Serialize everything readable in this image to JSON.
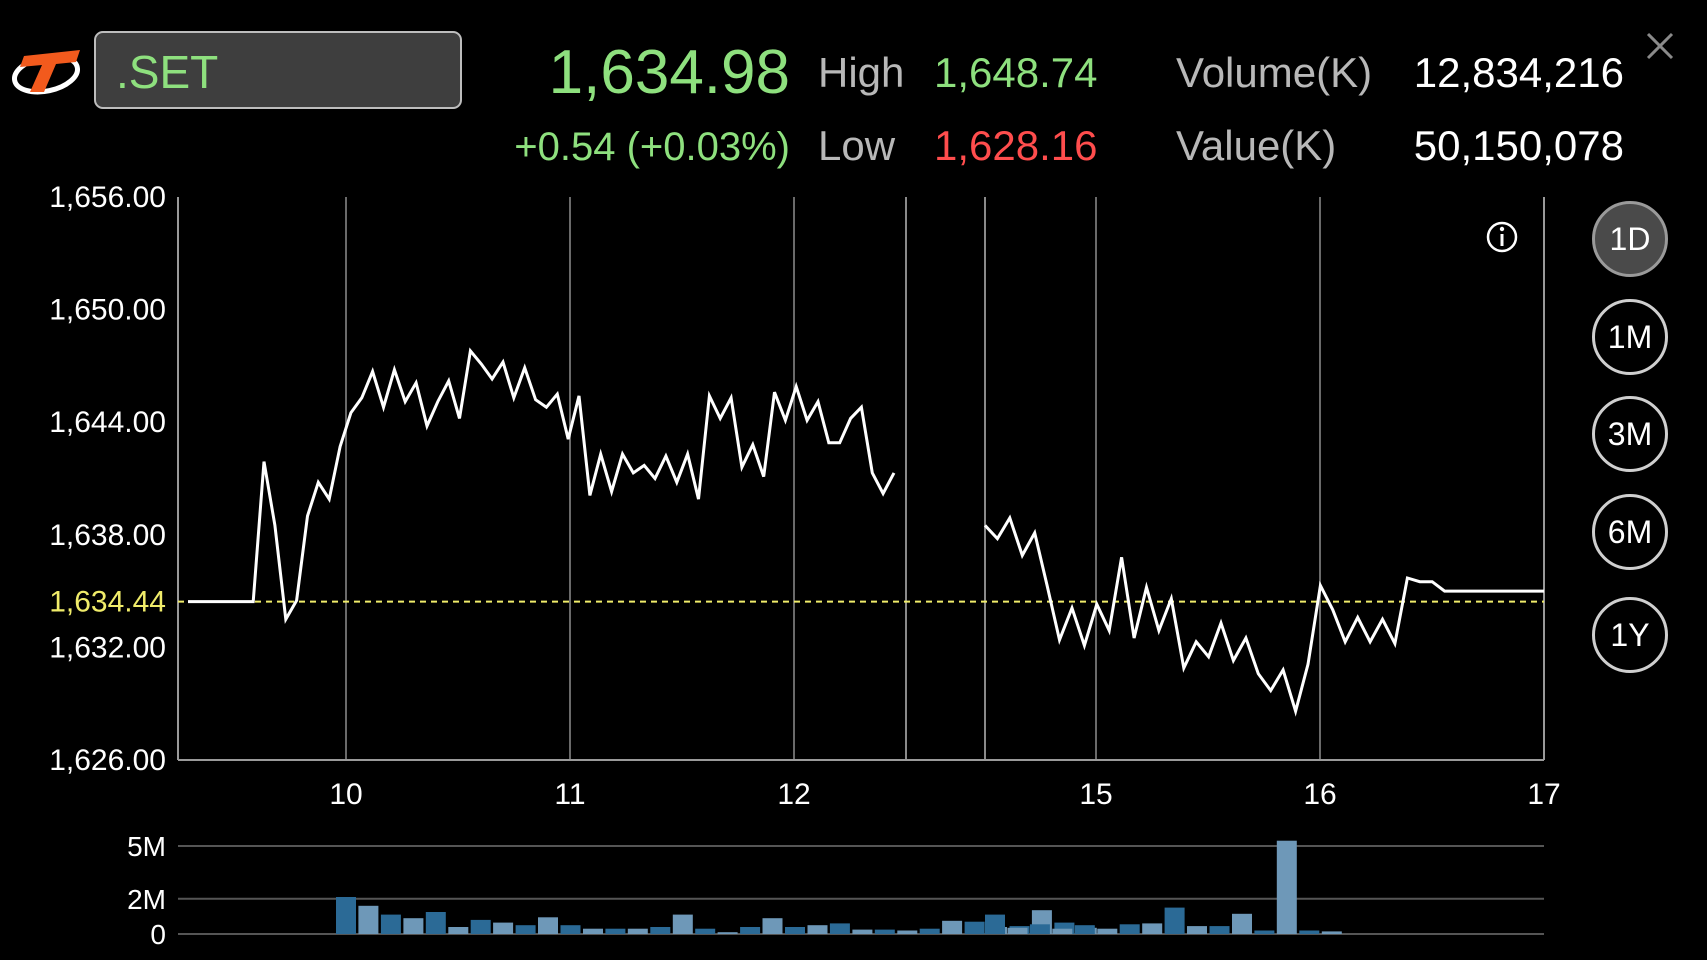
{
  "header": {
    "logo": "settrade-logo-icon",
    "symbol": ".SET",
    "last_price": "1,634.98",
    "change": "+0.54 (+0.03%)",
    "high_label": "High",
    "high_value": "1,648.74",
    "low_label": "Low",
    "low_value": "1,628.16",
    "volume_label": "Volume(K)",
    "volume_value": "12,834,216",
    "value_label": "Value(K)",
    "value_value": "50,150,078",
    "close_icon": "close-icon"
  },
  "colors": {
    "up": "#8ee07e",
    "down": "#ff4d4d",
    "prior_close": "#f0ec6a",
    "price_line": "#ffffff",
    "volume_bar_dark": "#2b6a96",
    "volume_bar_light": "#6e98b8",
    "axis": "#9a9a9a"
  },
  "periods": [
    {
      "label": "1D",
      "active": true
    },
    {
      "label": "1M",
      "active": false
    },
    {
      "label": "3M",
      "active": false
    },
    {
      "label": "6M",
      "active": false
    },
    {
      "label": "1Y",
      "active": false
    }
  ],
  "info_icon": "info-icon",
  "chart_data": [
    {
      "type": "line",
      "ylim": [
        1626,
        1656
      ],
      "y_ticks": [
        "1,656.00",
        "1,650.00",
        "1,644.00",
        "1,638.00",
        "1,632.00",
        "1,626.00"
      ],
      "y_tick_values": [
        1656,
        1650,
        1644,
        1638,
        1632,
        1626
      ],
      "prior_close": 1634.44,
      "prior_close_label": "1,634.44",
      "x_ticks": [
        "10",
        "11",
        "12",
        "15",
        "16",
        "17"
      ],
      "session_break_after": 65,
      "grid": "vertical lines at time ticks",
      "series": [
        {
          "values": [
            1634.44,
            1634.44,
            1634.44,
            1634.44,
            1634.44,
            1634.44,
            1634.44,
            1641.9,
            1638.5,
            1633.5,
            1634.5,
            1639,
            1640.8,
            1639.9,
            1642.7,
            1644.5,
            1645.3,
            1646.7,
            1644.8,
            1646.8,
            1645.1,
            1646.1,
            1643.8,
            1645.1,
            1646.2,
            1644.2,
            1647.8,
            1647.1,
            1646.3,
            1647.2,
            1645.3,
            1646.9,
            1645.2,
            1644.8,
            1645.5,
            1643.1,
            1645.4,
            1640.1,
            1642.3,
            1640.3,
            1642.3,
            1641.3,
            1641.7,
            1641,
            1642.2,
            1640.8,
            1642.3,
            1639.9,
            1645.4,
            1644.2,
            1645.3,
            1641.6,
            1642.8,
            1641.1,
            1645.6,
            1644.1,
            1645.9,
            1644.1,
            1645.1,
            1642.9,
            1642.9,
            1644.2,
            1644.8,
            1641.3,
            1640.2,
            1641.3,
            1638.5,
            1637.8,
            1638.9,
            1636.9,
            1638.1,
            1635.3,
            1632.4,
            1634.1,
            1632.1,
            1634.3,
            1632.9,
            1636.8,
            1632.5,
            1635.2,
            1632.9,
            1634.6,
            1630.9,
            1632.3,
            1631.5,
            1633.3,
            1631.3,
            1632.5,
            1630.6,
            1629.7,
            1630.8,
            1628.6,
            1631.1,
            1635.3,
            1634,
            1632.3,
            1633.6,
            1632.3,
            1633.5,
            1632.2,
            1635.7,
            1635.5,
            1635.5,
            1635,
            1635,
            1635,
            1635,
            1635,
            1635,
            1635,
            1635,
            1635
          ]
        }
      ]
    },
    {
      "type": "bar",
      "ylim": [
        0,
        6
      ],
      "y_ticks": [
        "5M",
        "2M",
        "0"
      ],
      "y_tick_values": [
        5,
        2,
        0
      ],
      "session_break_after": 33,
      "series": [
        {
          "values": [
            2.1,
            1.6,
            1.1,
            0.9,
            1.25,
            0.4,
            0.8,
            0.65,
            0.5,
            0.95,
            0.5,
            0.3,
            0.3,
            0.3,
            0.4,
            1.1,
            0.3,
            0.1,
            0.4,
            0.9,
            0.4,
            0.5,
            0.6,
            0.25,
            0.25,
            0.2,
            0.3,
            0.75,
            0.7,
            0.4,
            0.45,
            1.35,
            0.65,
            0.35,
            1.1,
            0.35,
            0.55,
            0.3,
            0.5,
            0.3,
            0.55,
            0.6,
            1.5,
            0.45,
            0.45,
            1.15,
            0.2,
            5.3,
            0.2,
            0.15
          ]
        }
      ]
    }
  ]
}
